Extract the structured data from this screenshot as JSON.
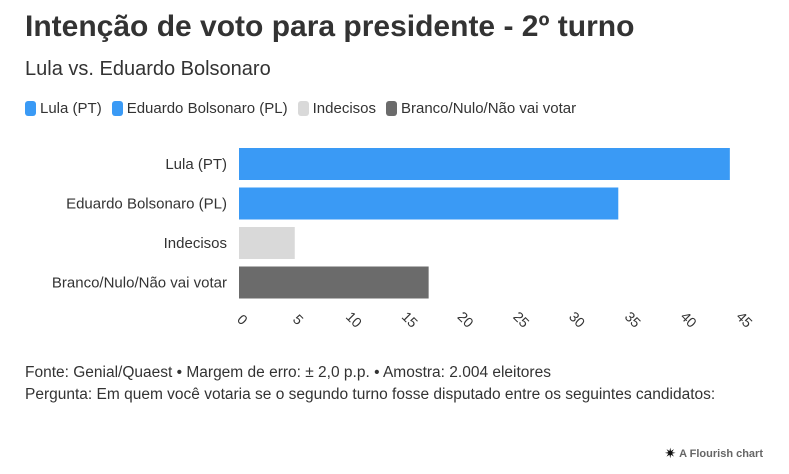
{
  "title": "Intenção de voto para presidente - 2º turno",
  "subtitle": "Lula vs. Eduardo Bolsonaro",
  "legend": [
    {
      "label": "Lula (PT)",
      "color": "#3a9af5"
    },
    {
      "label": "Eduardo Bolsonaro (PL)",
      "color": "#3a9af5"
    },
    {
      "label": "Indecisos",
      "color": "#d9d9d9"
    },
    {
      "label": "Branco/Nulo/Não vai votar",
      "color": "#6b6b6b"
    }
  ],
  "chart_data": {
    "type": "bar",
    "orientation": "horizontal",
    "categories": [
      "Lula (PT)",
      "Eduardo Bolsonaro (PL)",
      "Indecisos",
      "Branco/Nulo/Não vai votar"
    ],
    "values": [
      44,
      34,
      5,
      17
    ],
    "colors": [
      "#3a9af5",
      "#3a9af5",
      "#d9d9d9",
      "#6b6b6b"
    ],
    "xticks": [
      0,
      5,
      10,
      15,
      20,
      25,
      30,
      35,
      40,
      45
    ],
    "xlim": [
      0,
      45
    ],
    "grid": false
  },
  "footer": {
    "source": "Fonte: Genial/Quaest • Margem de erro: ± 2,0 p.p. • Amostra: 2.004 eleitores",
    "question": "Pergunta: Em quem você votaria se o segundo turno fosse disputado entre os seguintes candidatos:"
  },
  "credit": {
    "text": "A Flourish chart",
    "icon": "flourish-star-icon"
  }
}
